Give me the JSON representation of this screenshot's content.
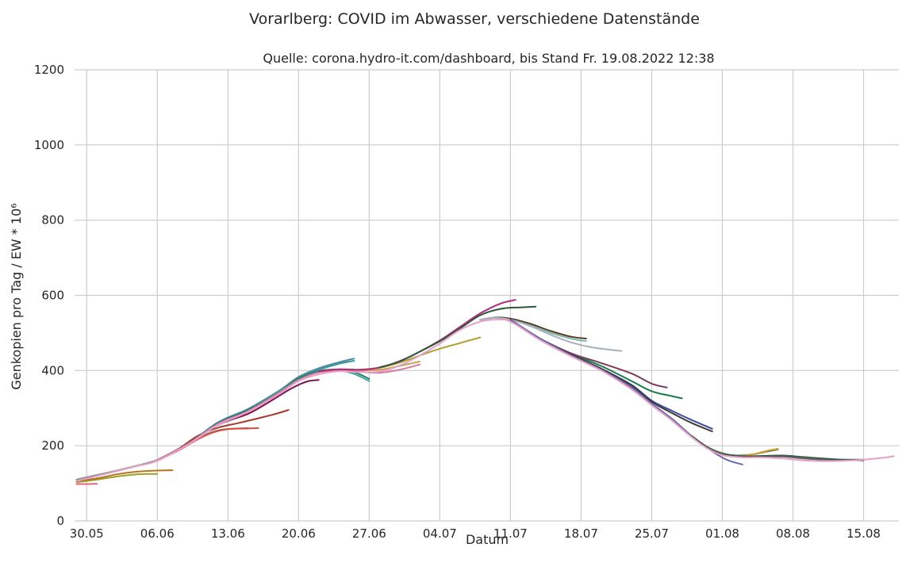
{
  "chart_data": {
    "type": "line",
    "title": "Vorarlberg: COVID im Abwasser, verschiedene Datenstände",
    "subtitle": "Quelle: corona.hydro-it.com/dashboard, bis Stand Fr. 19.08.2022 12:38",
    "xlabel": "Datum",
    "ylabel": "Genkopien pro Tag / EW * 10⁶",
    "x_range_days": [
      -1.2,
      80.5
    ],
    "ylim": [
      0,
      1200
    ],
    "x_ticks": [
      {
        "day": 0,
        "label": "30.05"
      },
      {
        "day": 7,
        "label": "06.06"
      },
      {
        "day": 14,
        "label": "13.06"
      },
      {
        "day": 21,
        "label": "20.06"
      },
      {
        "day": 28,
        "label": "27.06"
      },
      {
        "day": 35,
        "label": "04.07"
      },
      {
        "day": 42,
        "label": "11.07"
      },
      {
        "day": 49,
        "label": "18.07"
      },
      {
        "day": 56,
        "label": "25.07"
      },
      {
        "day": 63,
        "label": "01.08"
      },
      {
        "day": 70,
        "label": "08.08"
      },
      {
        "day": 77,
        "label": "15.08"
      }
    ],
    "y_ticks": [
      {
        "value": 0,
        "label": "0"
      },
      {
        "value": 200,
        "label": "200"
      },
      {
        "value": 400,
        "label": "400"
      },
      {
        "value": 600,
        "label": "600"
      },
      {
        "value": 800,
        "label": "800"
      },
      {
        "value": 1000,
        "label": "1000"
      },
      {
        "value": 1200,
        "label": "1200"
      }
    ],
    "grid": true,
    "series": [
      {
        "color": "#e8607a",
        "x": [
          -1.0,
          0.0,
          1.0
        ],
        "y": [
          98,
          98,
          99
        ]
      },
      {
        "color": "#9aa02a",
        "x": [
          -1.0,
          0.5,
          2.0,
          3.5,
          5.0,
          6.0,
          7.0
        ],
        "y": [
          103,
          108,
          114,
          120,
          124,
          125,
          125
        ]
      },
      {
        "color": "#b8741c",
        "x": [
          -1.0,
          1.0,
          3.0,
          5.0,
          7.0,
          8.5
        ],
        "y": [
          106,
          113,
          124,
          131,
          134,
          135
        ]
      },
      {
        "color": "#8a8a8a",
        "x": [
          -1.0,
          2.0,
          5.0,
          7.0,
          9.0,
          11.0,
          13.0,
          15.0,
          16.0
        ],
        "y": [
          110,
          128,
          147,
          162,
          187,
          220,
          241,
          246,
          247
        ]
      },
      {
        "color": "#d94a3a",
        "x": [
          7.0,
          9.0,
          11.0,
          12.5,
          14.0,
          16.0,
          17.0
        ],
        "y": [
          162,
          186,
          217,
          235,
          244,
          246,
          247
        ]
      },
      {
        "color": "#a63a2a",
        "x": [
          7.0,
          9.0,
          11.0,
          13.0,
          15.0,
          17.0,
          18.5,
          20.0
        ],
        "y": [
          162,
          190,
          226,
          248,
          260,
          273,
          283,
          295
        ]
      },
      {
        "color": "#7a1650",
        "x": [
          7.0,
          10.0,
          13.0,
          16.0,
          18.0,
          20.0,
          21.0,
          22.0,
          23.0
        ],
        "y": [
          162,
          204,
          255,
          285,
          315,
          348,
          362,
          372,
          375
        ]
      },
      {
        "color": "#3aa6a2",
        "x": [
          7.0,
          10.0,
          13.0,
          16.0,
          19.0,
          21.0,
          23.0,
          25.0,
          26.5,
          28.0
        ],
        "y": [
          162,
          204,
          258,
          292,
          340,
          378,
          399,
          401,
          391,
          372
        ]
      },
      {
        "color": "#6e6e6e",
        "x": [
          7.0,
          10.0,
          13.0,
          16.0,
          19.0,
          21.0,
          23.0,
          25.0,
          27.0
        ],
        "y": [
          162,
          204,
          258,
          292,
          340,
          378,
          397,
          403,
          402
        ]
      },
      {
        "color": "#4a8ab0",
        "x": [
          7.0,
          10.0,
          13.0,
          16.0,
          19.0,
          21.0,
          23.0,
          25.0,
          26.5
        ],
        "y": [
          162,
          204,
          262,
          298,
          345,
          383,
          406,
          422,
          432
        ]
      },
      {
        "color": "#3a9a8a",
        "x": [
          7.0,
          10.0,
          13.0,
          16.0,
          19.0,
          21.0,
          23.0,
          25.0,
          26.5
        ],
        "y": [
          162,
          204,
          260,
          296,
          343,
          381,
          402,
          418,
          426
        ]
      },
      {
        "color": "#2a7a6a",
        "x": [
          7.0,
          10.0,
          13.0,
          16.0,
          19.0,
          21.0,
          23.0,
          25.0,
          26.5,
          28.0
        ],
        "y": [
          162,
          204,
          260,
          295,
          340,
          379,
          398,
          403,
          396,
          378
        ]
      },
      {
        "color": "#d47aa0",
        "x": [
          7.0,
          10.0,
          13.0,
          16.0,
          19.0,
          21.0,
          23.0,
          25.0,
          27.0,
          29.0,
          31.0,
          33.0
        ],
        "y": [
          162,
          204,
          258,
          292,
          340,
          375,
          395,
          400,
          397,
          394,
          402,
          416
        ]
      },
      {
        "color": "#c8a050",
        "x": [
          23.0,
          25.0,
          27.0,
          29.0,
          31.0,
          33.0
        ],
        "y": [
          398,
          403,
          401,
          402,
          412,
          424
        ]
      },
      {
        "color": "#b0a030",
        "x": [
          23.0,
          25.0,
          27.0,
          29.0,
          31.0,
          33.0,
          35.0,
          37.0,
          39.0
        ],
        "y": [
          398,
          403,
          402,
          407,
          421,
          440,
          458,
          473,
          488
        ]
      },
      {
        "color": "#b02880",
        "x": [
          23.0,
          25.0,
          27.0,
          29.0,
          31.0,
          33.0,
          35.0,
          37.0,
          39.0,
          41.0,
          42.5
        ],
        "y": [
          398,
          403,
          402,
          408,
          425,
          450,
          480,
          516,
          552,
          578,
          588
        ]
      },
      {
        "color": "#2a5a3a",
        "x": [
          29.0,
          31.0,
          33.0,
          35.0,
          37.0,
          39.0,
          41.0,
          43.0,
          44.5
        ],
        "y": [
          408,
          424,
          450,
          478,
          512,
          547,
          564,
          568,
          570
        ]
      },
      {
        "color": "#5a3a1a",
        "x": [
          39.0,
          40.5,
          42.0,
          44.0,
          46.0,
          48.0,
          49.5
        ],
        "y": [
          535,
          541,
          538,
          524,
          505,
          490,
          485
        ]
      },
      {
        "color": "#7ab8b0",
        "x": [
          39.0,
          40.5,
          42.0,
          44.0,
          46.0,
          48.0,
          49.5
        ],
        "y": [
          535,
          540,
          535,
          520,
          500,
          485,
          478
        ]
      },
      {
        "color": "#a8b0bc",
        "x": [
          39.0,
          40.5,
          42.0,
          44.0,
          46.0,
          48.0,
          50.0,
          52.0,
          53.0
        ],
        "y": [
          535,
          540,
          535,
          518,
          495,
          475,
          462,
          455,
          452
        ]
      },
      {
        "color": "#1a7a4a",
        "x": [
          42.0,
          45.0,
          48.0,
          51.0,
          54.0,
          56.0,
          58.0,
          59.0
        ],
        "y": [
          535,
          484,
          445,
          412,
          372,
          345,
          332,
          326
        ]
      },
      {
        "color": "#7a3a5a",
        "x": [
          42.0,
          45.0,
          48.0,
          51.0,
          54.0,
          56.0,
          57.5
        ],
        "y": [
          535,
          484,
          446,
          420,
          392,
          365,
          355
        ]
      },
      {
        "color": "#3a4aa0",
        "x": [
          42.0,
          45.0,
          48.0,
          51.0,
          54.0,
          56.0,
          58.0,
          60.0,
          62.0
        ],
        "y": [
          535,
          484,
          442,
          405,
          362,
          320,
          293,
          268,
          245
        ]
      },
      {
        "color": "#3a3a3a",
        "x": [
          42.0,
          45.0,
          48.0,
          51.0,
          54.0,
          56.0,
          58.0,
          60.0,
          62.0
        ],
        "y": [
          535,
          484,
          442,
          405,
          360,
          317,
          287,
          260,
          238
        ]
      },
      {
        "color": "#6a6ab0",
        "x": [
          42.0,
          45.0,
          48.0,
          51.0,
          54.0,
          56.0,
          58.0,
          60.0,
          62.0,
          63.5,
          65.0
        ],
        "y": [
          535,
          484,
          440,
          402,
          355,
          312,
          272,
          225,
          185,
          162,
          150
        ]
      },
      {
        "color": "#4a7a40",
        "x": [
          60.0,
          61.5,
          63.0,
          64.5,
          66.0,
          67.5,
          68.5
        ],
        "y": [
          225,
          197,
          180,
          174,
          177,
          185,
          190
        ]
      },
      {
        "color": "#d8a030",
        "x": [
          60.0,
          61.5,
          63.0,
          64.5,
          66.0,
          67.5,
          68.5
        ],
        "y": [
          225,
          196,
          178,
          172,
          177,
          187,
          192
        ]
      },
      {
        "color": "#6a6a6a",
        "x": [
          60.0,
          61.5,
          63.0,
          65.0,
          67.0,
          69.0,
          71.0,
          73.0,
          75.0,
          77.0
        ],
        "y": [
          225,
          196,
          178,
          172,
          171,
          171,
          166,
          163,
          162,
          161
        ]
      },
      {
        "color": "#3a5a4a",
        "x": [
          60.0,
          61.5,
          63.0,
          65.0,
          67.0,
          69.0,
          71.0,
          73.0,
          75.0,
          77.0
        ],
        "y": [
          225,
          196,
          178,
          172,
          173,
          174,
          170,
          166,
          163,
          163
        ]
      },
      {
        "color": "#e8a0c8",
        "x": [
          -1.0,
          2.0,
          5.0,
          7.0,
          10.0,
          13.0,
          16.0,
          19.0,
          21.0,
          23.0,
          25.0,
          27.0,
          29.0,
          31.0,
          33.0,
          35.0,
          37.0,
          39.0,
          40.5,
          42.0,
          45.0,
          48.0,
          51.0,
          54.0,
          56.0,
          58.0,
          60.0,
          61.5,
          63.0,
          65.0,
          67.0,
          69.0,
          71.0,
          73.0,
          75.0,
          77.0,
          79.0,
          80.0
        ],
        "y": [
          106,
          126,
          146,
          160,
          202,
          255,
          290,
          336,
          372,
          390,
          398,
          396,
          397,
          413,
          440,
          472,
          508,
          530,
          535,
          530,
          480,
          438,
          400,
          350,
          308,
          267,
          222,
          193,
          175,
          169,
          169,
          166,
          161,
          159,
          160,
          163,
          168,
          172
        ]
      }
    ]
  }
}
